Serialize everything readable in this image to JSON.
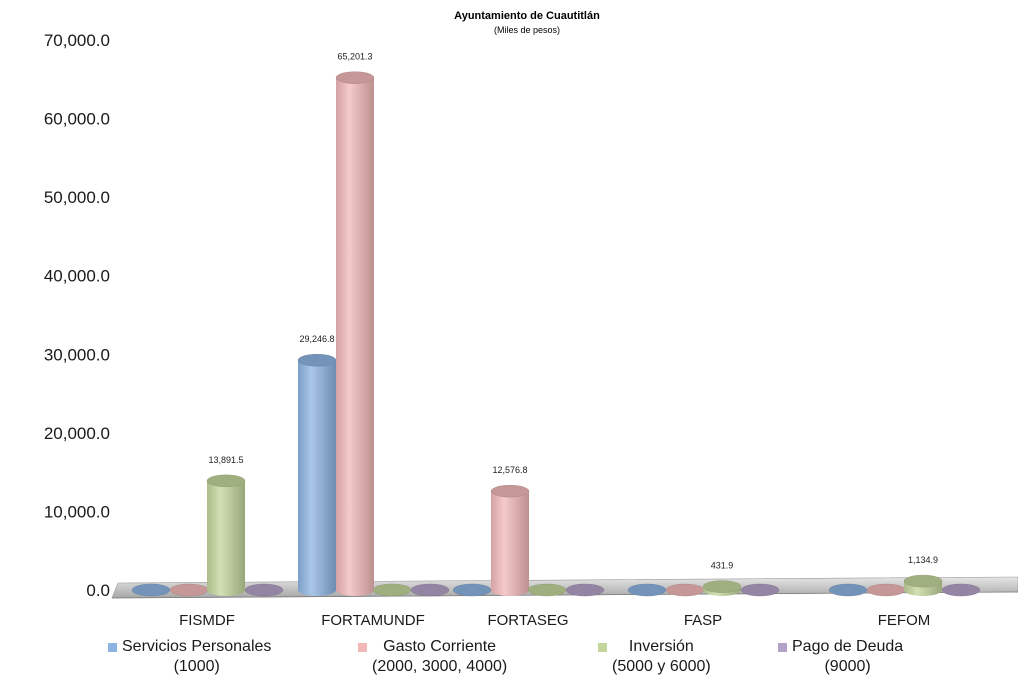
{
  "chart_data": {
    "type": "bar",
    "title": "Ayuntamiento de Cuautitlán",
    "subtitle": "(Miles de pesos)",
    "categories": [
      "FISMDF",
      "FORTAMUNDF",
      "FORTASEG",
      "FASP",
      "FEFOM"
    ],
    "series": [
      {
        "name": "Servicios Personales",
        "name_line2": "(1000)",
        "color": "#8db3e2",
        "values": [
          0,
          29246.8,
          0,
          0,
          0
        ],
        "labels": [
          "",
          "29,246.8",
          "",
          "",
          ""
        ]
      },
      {
        "name": "Gasto Corriente",
        "name_line2": "(2000, 3000, 4000)",
        "color": "#f2b8b8",
        "values": [
          0,
          65201.3,
          12576.8,
          0,
          0
        ],
        "labels": [
          "",
          "65,201.3",
          "12,576.8",
          "",
          ""
        ]
      },
      {
        "name": "Inversión",
        "name_line2": "(5000 y 6000)",
        "color": "#c3d69b",
        "values": [
          13891.5,
          0,
          0,
          431.9,
          1134.9
        ],
        "labels": [
          "13,891.5",
          "",
          "",
          "431.9",
          "1,134.9"
        ]
      },
      {
        "name": "Pago de Deuda",
        "name_line2": "(9000)",
        "color": "#b3a2c7",
        "values": [
          0,
          0,
          0,
          0,
          0
        ],
        "labels": [
          "",
          "",
          "",
          "",
          ""
        ]
      }
    ],
    "yticks": [
      "0.0",
      "10,000.0",
      "20,000.0",
      "30,000.0",
      "40,000.0",
      "50,000.0",
      "60,000.0",
      "70,000.0"
    ],
    "ylim": [
      0,
      70000
    ],
    "legend_position": "bottom",
    "style": "3d-cylinder"
  }
}
